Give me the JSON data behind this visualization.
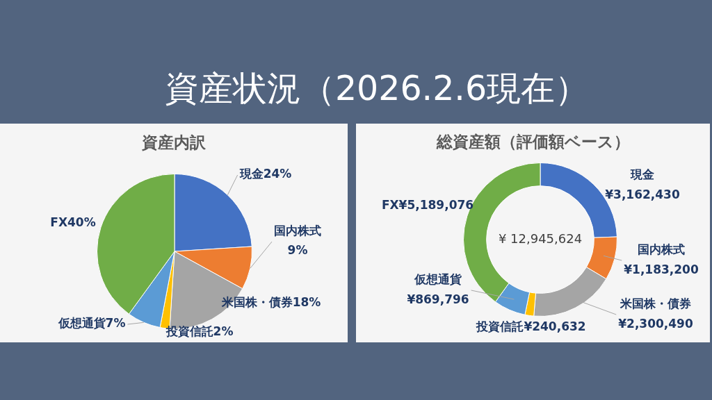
{
  "chart_data": [
    {
      "type": "pie",
      "title": "資産内訳",
      "annotations": [
        "資産状況（2026.2.6現在）"
      ],
      "categories": [
        "現金",
        "国内株式",
        "米国株・債券",
        "投資信託",
        "仮想通貨",
        "FX"
      ],
      "values": [
        24,
        9,
        18,
        2,
        7,
        40
      ],
      "value_labels": [
        "24%",
        "9%",
        "18%",
        "2%",
        "7%",
        "40%"
      ],
      "colors": [
        "#4472c4",
        "#ed7d31",
        "#a5a5a5",
        "#ffc000",
        "#5b9bd5",
        "#70ad47"
      ]
    },
    {
      "type": "donut",
      "title": "総資産額（評価額ベース）",
      "annotations": [
        "¥ 12,945,624"
      ],
      "categories": [
        "現金",
        "国内株式",
        "米国株・債券",
        "投資信託",
        "仮想通貨",
        "FX"
      ],
      "values": [
        3162430,
        1183200,
        2300490,
        240632,
        869796,
        5189076
      ],
      "value_labels": [
        "¥3,162,430",
        "¥1,183,200",
        "¥2,300,490",
        "¥240,632",
        "¥869,796",
        "¥5,189,076"
      ],
      "colors": [
        "#4472c4",
        "#ed7d31",
        "#a5a5a5",
        "#ffc000",
        "#5b9bd5",
        "#70ad47"
      ]
    }
  ]
}
